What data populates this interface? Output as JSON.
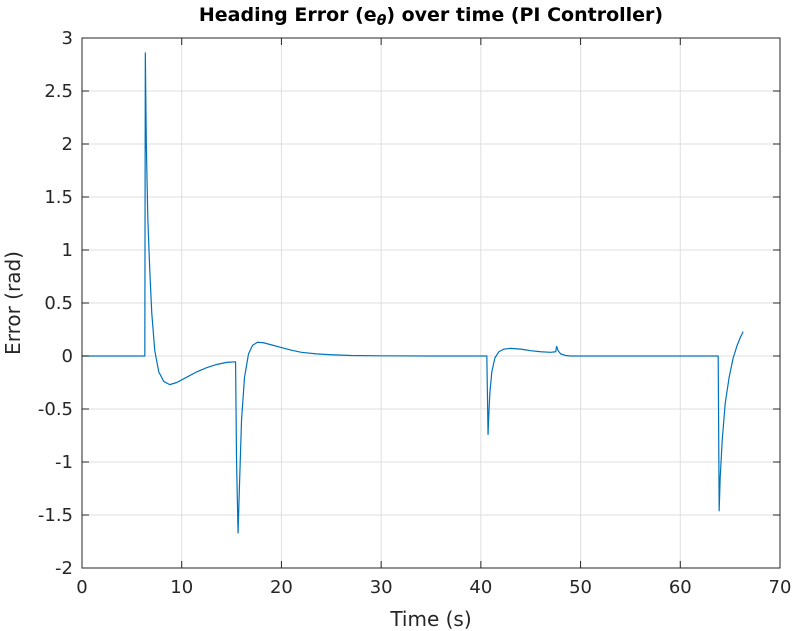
{
  "chart_data": {
    "type": "line",
    "title_parts": {
      "pre": "Heading Error (e",
      "sub": "θ",
      "post": ") over time (PI Controller)"
    },
    "xlabel": "Time (s)",
    "ylabel": "Error (rad)",
    "xlim": [
      0,
      70
    ],
    "ylim": [
      -2,
      3
    ],
    "xticks": [
      0,
      10,
      20,
      30,
      40,
      50,
      60,
      70
    ],
    "yticks": [
      -2,
      -1.5,
      -1,
      -0.5,
      0,
      0.5,
      1,
      1.5,
      2,
      2.5,
      3
    ],
    "xtick_labels": [
      "0",
      "10",
      "20",
      "30",
      "40",
      "50",
      "60",
      "70"
    ],
    "ytick_labels": [
      "-2",
      "-1.5",
      "-1",
      "-0.5",
      "0",
      "0.5",
      "1",
      "1.5",
      "2",
      "2.5",
      "3"
    ],
    "grid": true,
    "series": [
      {
        "color": "#0072BD",
        "x": [
          0,
          6.3,
          6.35,
          6.45,
          6.6,
          6.8,
          7.0,
          7.3,
          7.7,
          8.2,
          8.8,
          9.5,
          10.5,
          11.5,
          12.5,
          13.5,
          14.5,
          15.4,
          15.5,
          15.65,
          15.8,
          16.0,
          16.3,
          16.7,
          17.1,
          17.6,
          18.2,
          19.0,
          20.0,
          21.0,
          22.0,
          23.5,
          25.0,
          27.0,
          30.0,
          35.0,
          40.6,
          40.72,
          40.8,
          40.9,
          41.1,
          41.4,
          41.8,
          42.3,
          43.0,
          44.0,
          45.0,
          46.0,
          47.0,
          47.5,
          47.6,
          47.75,
          48.0,
          48.5,
          49.0,
          50.0,
          55.0,
          60.0,
          63.8,
          63.9,
          64.0,
          64.2,
          64.5,
          64.9,
          65.3,
          65.7,
          66.0,
          66.3
        ],
        "y": [
          0,
          0,
          2.86,
          2.0,
          1.3,
          0.8,
          0.4,
          0.05,
          -0.15,
          -0.24,
          -0.27,
          -0.25,
          -0.2,
          -0.15,
          -0.11,
          -0.08,
          -0.06,
          -0.055,
          -1.0,
          -1.67,
          -1.2,
          -0.6,
          -0.2,
          0.02,
          0.1,
          0.13,
          0.125,
          0.105,
          0.08,
          0.055,
          0.035,
          0.02,
          0.012,
          0.005,
          0.002,
          0.0,
          0.0,
          -0.74,
          -0.55,
          -0.35,
          -0.15,
          -0.02,
          0.04,
          0.065,
          0.072,
          0.065,
          0.05,
          0.04,
          0.035,
          0.04,
          0.09,
          0.05,
          0.02,
          0.005,
          0.0,
          0.0,
          0.0,
          0.0,
          0.0,
          -1.46,
          -1.15,
          -0.8,
          -0.45,
          -0.2,
          -0.02,
          0.1,
          0.17,
          0.23
        ]
      }
    ]
  }
}
